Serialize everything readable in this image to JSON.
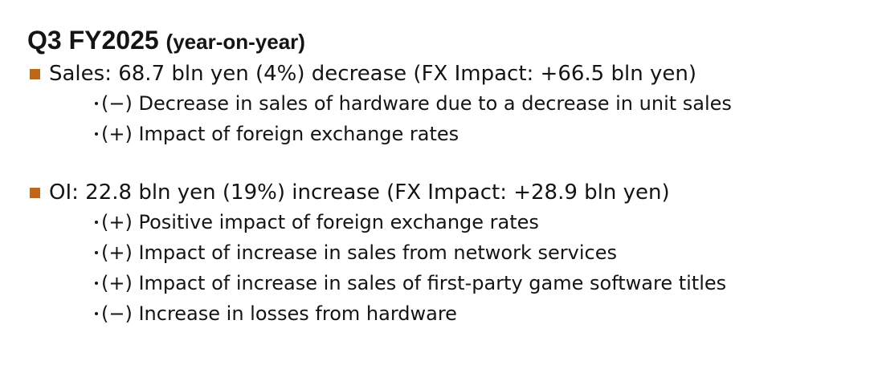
{
  "heading": {
    "main": "Q3 FY2025",
    "sub": "(year-on-year)"
  },
  "accent_color": "#c0661b",
  "bullet_icon": "square-bullet-icon",
  "sections": [
    {
      "text": "Sales: 68.7 bln yen (4%) decrease (FX Impact: +66.5 bln yen)",
      "items": [
        "(−) Decrease in sales of hardware due to a decrease in unit sales",
        "(+) Impact of foreign exchange rates"
      ]
    },
    {
      "text": "OI: 22.8 bln yen (19%) increase (FX Impact: +28.9 bln yen)",
      "items": [
        "(+) Positive impact of foreign exchange rates",
        "(+) Impact of increase in sales from network services",
        "(+) Impact of increase in sales of first-party game software titles",
        "(−) Increase in losses from hardware"
      ]
    }
  ]
}
